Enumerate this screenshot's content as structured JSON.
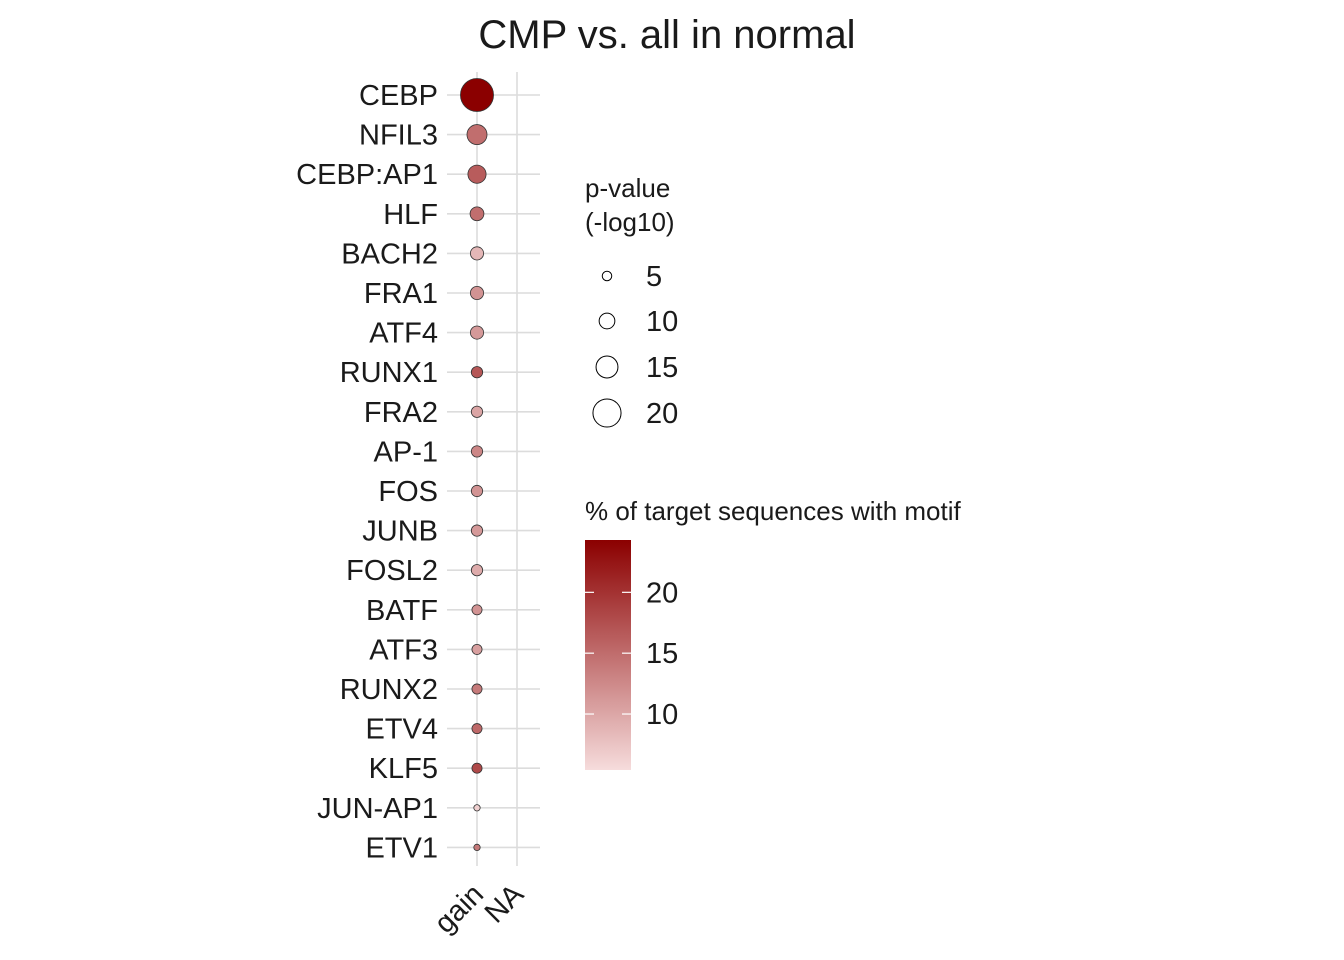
{
  "chart_data": {
    "type": "scatter",
    "title": "CMP vs. all in normal",
    "x_categories": [
      "gain",
      "NA"
    ],
    "motifs": [
      "CEBP",
      "NFIL3",
      "CEBP:AP1",
      "HLF",
      "BACH2",
      "FRA1",
      "ATF4",
      "RUNX1",
      "FRA2",
      "AP-1",
      "FOS",
      "JUNB",
      "FOSL2",
      "BATF",
      "ATF3",
      "RUNX2",
      "ETV4",
      "KLF5",
      "JUN-AP1",
      "ETV1"
    ],
    "points": [
      {
        "motif": "CEBP",
        "x": "gain",
        "pvalue_log10": 24,
        "pct_target": 24
      },
      {
        "motif": "NFIL3",
        "x": "gain",
        "pvalue_log10": 13.5,
        "pct_target": 15
      },
      {
        "motif": "CEBP:AP1",
        "x": "gain",
        "pvalue_log10": 12,
        "pct_target": 16.5
      },
      {
        "motif": "HLF",
        "x": "gain",
        "pvalue_log10": 8.5,
        "pct_target": 15
      },
      {
        "motif": "BACH2",
        "x": "gain",
        "pvalue_log10": 8,
        "pct_target": 9
      },
      {
        "motif": "FRA1",
        "x": "gain",
        "pvalue_log10": 8,
        "pct_target": 12
      },
      {
        "motif": "ATF4",
        "x": "gain",
        "pvalue_log10": 8,
        "pct_target": 11.5
      },
      {
        "motif": "RUNX1",
        "x": "gain",
        "pvalue_log10": 6.5,
        "pct_target": 17
      },
      {
        "motif": "FRA2",
        "x": "gain",
        "pvalue_log10": 6.5,
        "pct_target": 10.5
      },
      {
        "motif": "AP-1",
        "x": "gain",
        "pvalue_log10": 6.5,
        "pct_target": 13
      },
      {
        "motif": "FOS",
        "x": "gain",
        "pvalue_log10": 6.5,
        "pct_target": 12
      },
      {
        "motif": "JUNB",
        "x": "gain",
        "pvalue_log10": 6.5,
        "pct_target": 11.5
      },
      {
        "motif": "FOSL2",
        "x": "gain",
        "pvalue_log10": 6.5,
        "pct_target": 10
      },
      {
        "motif": "BATF",
        "x": "gain",
        "pvalue_log10": 5.5,
        "pct_target": 12
      },
      {
        "motif": "ATF3",
        "x": "gain",
        "pvalue_log10": 5.5,
        "pct_target": 11
      },
      {
        "motif": "RUNX2",
        "x": "gain",
        "pvalue_log10": 5.5,
        "pct_target": 14
      },
      {
        "motif": "ETV4",
        "x": "gain",
        "pvalue_log10": 5.5,
        "pct_target": 15.5
      },
      {
        "motif": "KLF5",
        "x": "gain",
        "pvalue_log10": 5.5,
        "pct_target": 18
      },
      {
        "motif": "JUN-AP1",
        "x": "gain",
        "pvalue_log10": 2.5,
        "pct_target": 7
      },
      {
        "motif": "ETV1",
        "x": "gain",
        "pvalue_log10": 2.5,
        "pct_target": 14
      }
    ],
    "size_legend": {
      "title_line1": "p-value",
      "title_line2": "(-log10)",
      "breaks": [
        5,
        10,
        15,
        20
      ]
    },
    "color_legend": {
      "title": "% of target sequences with motif",
      "breaks": [
        10,
        15,
        20
      ],
      "min": 6,
      "max": 24,
      "color_low": "#f6dcdc",
      "color_high": "#8b0000"
    },
    "grid": true,
    "legend_position": "right"
  }
}
